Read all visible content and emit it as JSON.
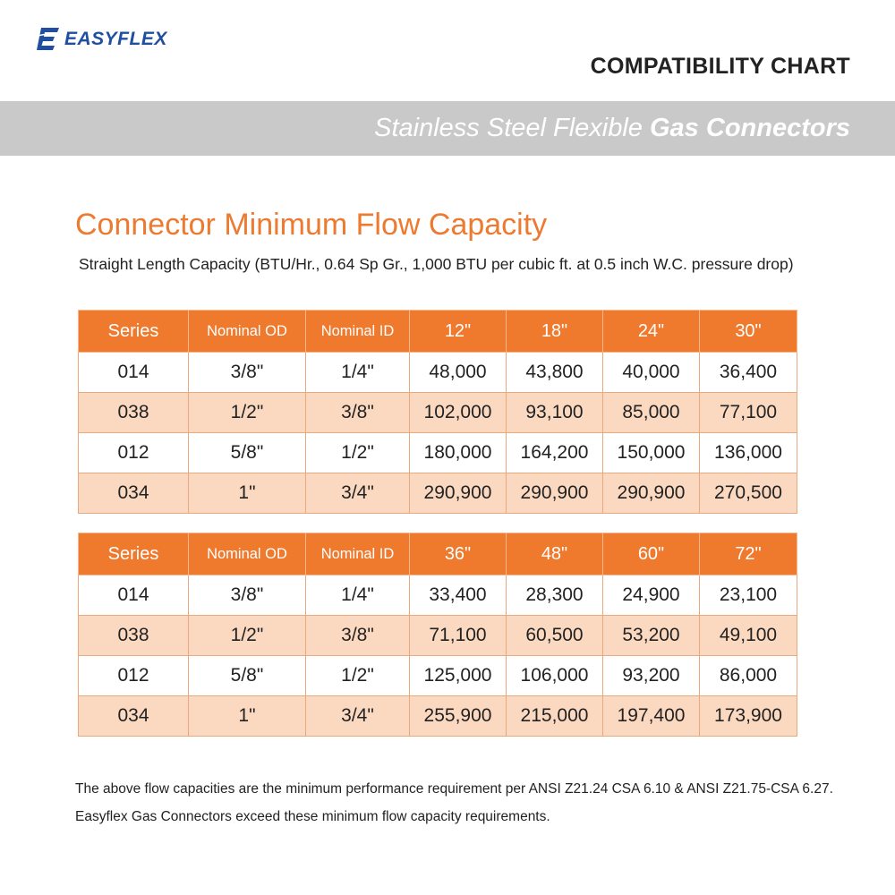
{
  "header": {
    "logo_text": "EASYFLEX",
    "title": "COMPATIBILITY CHART",
    "banner_light": "Stainless Steel Flexible ",
    "banner_bold": "Gas Connectors"
  },
  "section": {
    "heading": "Connector Minimum Flow Capacity",
    "subheading": "Straight Length Capacity (BTU/Hr., 0.64 Sp Gr., 1,000 BTU per cubic ft. at 0.5 inch W.C. pressure drop)"
  },
  "tables": [
    {
      "headers": [
        "Series",
        "Nominal OD",
        "Nominal ID",
        "12\"",
        "18\"",
        "24\"",
        "30\""
      ],
      "rows": [
        [
          "014",
          "3/8\"",
          "1/4\"",
          "48,000",
          "43,800",
          "40,000",
          "36,400"
        ],
        [
          "038",
          "1/2\"",
          "3/8\"",
          "102,000",
          "93,100",
          "85,000",
          "77,100"
        ],
        [
          "012",
          "5/8\"",
          "1/2\"",
          "180,000",
          "164,200",
          "150,000",
          "136,000"
        ],
        [
          "034",
          "1\"",
          "3/4\"",
          "290,900",
          "290,900",
          "290,900",
          "270,500"
        ]
      ]
    },
    {
      "headers": [
        "Series",
        "Nominal OD",
        "Nominal ID",
        "36\"",
        "48\"",
        "60\"",
        "72\""
      ],
      "rows": [
        [
          "014",
          "3/8\"",
          "1/4\"",
          "33,400",
          "28,300",
          "24,900",
          "23,100"
        ],
        [
          "038",
          "1/2\"",
          "3/8\"",
          "71,100",
          "60,500",
          "53,200",
          "49,100"
        ],
        [
          "012",
          "5/8\"",
          "1/2\"",
          "125,000",
          "106,000",
          "93,200",
          "86,000"
        ],
        [
          "034",
          "1\"",
          "3/4\"",
          "255,900",
          "215,000",
          "197,400",
          "173,900"
        ]
      ]
    }
  ],
  "footnote": {
    "line1": "The above flow capacities are the minimum performance requirement per ANSI Z21.24 CSA 6.10 & ANSI Z21.75-CSA 6.27.",
    "line2": "Easyflex Gas Connectors exceed these minimum flow capacity requirements."
  },
  "colors": {
    "brand_blue": "#1f4f9e",
    "header_orange": "#ef7a2e",
    "heading_orange": "#ec7a30",
    "row_alt": "#fbd9c0",
    "banner_gray": "#c9c9c9"
  }
}
